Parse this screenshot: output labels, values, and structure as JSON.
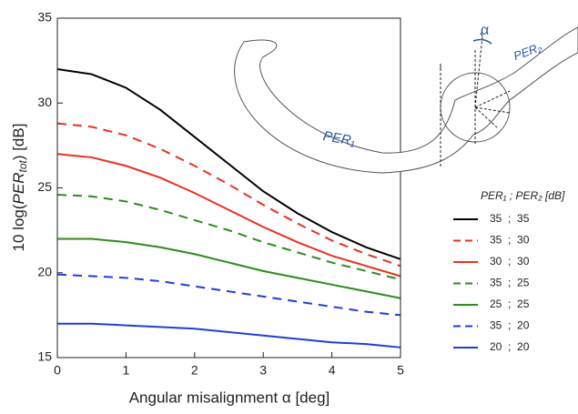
{
  "chart_data": {
    "type": "line",
    "x_label": "Angular misalignment α [deg]",
    "y_label_parts": [
      "10 log(",
      "PER",
      "tot",
      ") [dB]"
    ],
    "legend_title": "PER₁ ; PER₂ [dB]",
    "annotations": [
      "α",
      "PER₂",
      "PER₁"
    ],
    "x": [
      0,
      0.5,
      1,
      1.5,
      2,
      2.5,
      3,
      3.5,
      4,
      4.5,
      5
    ],
    "xlim": [
      0,
      5
    ],
    "xticks": [
      0,
      1,
      2,
      3,
      4,
      5
    ],
    "ylim": [
      15,
      35
    ],
    "yticks": [
      15,
      20,
      25,
      30,
      35
    ],
    "series": [
      {
        "name": "35  ;  35",
        "color": "#000000",
        "dash": false,
        "values": [
          32.0,
          31.7,
          30.9,
          29.6,
          28.0,
          26.4,
          24.8,
          23.5,
          22.4,
          21.5,
          20.8
        ]
      },
      {
        "name": "35  ;  30",
        "color": "#e8321e",
        "dash": true,
        "values": [
          28.8,
          28.6,
          28.1,
          27.3,
          26.3,
          25.2,
          24.0,
          22.9,
          21.9,
          21.1,
          20.4
        ]
      },
      {
        "name": "30  ;  30",
        "color": "#e8321e",
        "dash": false,
        "values": [
          27.0,
          26.8,
          26.3,
          25.6,
          24.7,
          23.7,
          22.7,
          21.8,
          21.0,
          20.4,
          19.8
        ]
      },
      {
        "name": "35  ;  25",
        "color": "#2e8b1e",
        "dash": true,
        "values": [
          24.6,
          24.5,
          24.2,
          23.7,
          23.1,
          22.5,
          21.8,
          21.2,
          20.6,
          20.1,
          19.6
        ]
      },
      {
        "name": "25  ;  25",
        "color": "#2e8b1e",
        "dash": false,
        "values": [
          22.0,
          22.0,
          21.8,
          21.5,
          21.1,
          20.6,
          20.1,
          19.7,
          19.3,
          18.9,
          18.5
        ]
      },
      {
        "name": "35  ;  20",
        "color": "#1f3fd8",
        "dash": true,
        "values": [
          19.9,
          19.8,
          19.7,
          19.5,
          19.2,
          18.9,
          18.6,
          18.3,
          18.0,
          17.7,
          17.5
        ]
      },
      {
        "name": "20  ;  20",
        "color": "#1f3fd8",
        "dash": false,
        "values": [
          17.0,
          17.0,
          16.9,
          16.8,
          16.7,
          16.5,
          16.3,
          16.1,
          15.9,
          15.8,
          15.6
        ]
      }
    ]
  }
}
